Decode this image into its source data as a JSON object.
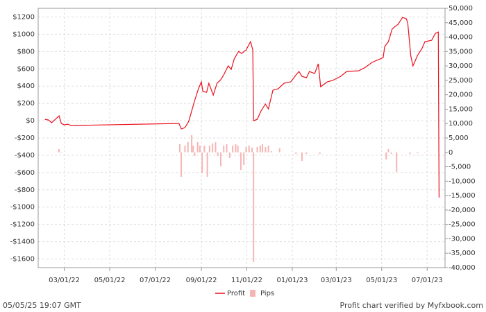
{
  "chart_data": {
    "type": "line_bar",
    "footer_left": "05/05/25 19:07 GMT",
    "footer_right": "Profit chart verified by Myfxbook.com",
    "xlim": [
      "01/25/22",
      "07/25/23"
    ],
    "xticks": [
      "03/01/22",
      "05/01/22",
      "07/01/22",
      "09/01/22",
      "11/01/22",
      "01/01/23",
      "03/01/23",
      "05/01/23",
      "07/01/23"
    ],
    "ylim": [
      -1700,
      1300
    ],
    "yticks": [
      {
        "value": 1200,
        "label": "$1200"
      },
      {
        "value": 1000,
        "label": "$1000"
      },
      {
        "value": 800,
        "label": "$800"
      },
      {
        "value": 600,
        "label": "$600"
      },
      {
        "value": 400,
        "label": "$400"
      },
      {
        "value": 200,
        "label": "$200"
      },
      {
        "value": 0,
        "label": "$0"
      },
      {
        "value": -200,
        "label": "-$200"
      },
      {
        "value": -400,
        "label": "-$400"
      },
      {
        "value": -600,
        "label": "-$600"
      },
      {
        "value": -800,
        "label": "-$800"
      },
      {
        "value": -1000,
        "label": "-$1000"
      },
      {
        "value": -1200,
        "label": "-$1200"
      },
      {
        "value": -1400,
        "label": "-$1400"
      },
      {
        "value": -1600,
        "label": "-$1600"
      }
    ],
    "y2lim": [
      -40000,
      50000
    ],
    "y2ticks": [
      {
        "value": 50000,
        "label": "50,000"
      },
      {
        "value": 45000,
        "label": "45,000"
      },
      {
        "value": 40000,
        "label": "40,000"
      },
      {
        "value": 35000,
        "label": "35,000"
      },
      {
        "value": 30000,
        "label": "30,000"
      },
      {
        "value": 25000,
        "label": "25,000"
      },
      {
        "value": 20000,
        "label": "20,000"
      },
      {
        "value": 15000,
        "label": "15,000"
      },
      {
        "value": 10000,
        "label": "10,000"
      },
      {
        "value": 5000,
        "label": "5,000"
      },
      0,
      {
        "value": -5000,
        "label": "-5,000"
      },
      {
        "value": -10000,
        "label": "-10,000"
      },
      {
        "value": -15000,
        "label": "-15,000"
      },
      {
        "value": -20000,
        "label": "-20,000"
      },
      {
        "value": -25000,
        "label": "-25,000"
      },
      {
        "value": -30000,
        "label": "-30,000"
      },
      {
        "value": -35000,
        "label": "-35,000"
      },
      {
        "value": -40000,
        "label": "-40,000"
      }
    ],
    "grid": true,
    "series": [
      {
        "name": "Profit",
        "type": "line",
        "color": "#e8101c",
        "x": [
          "02/03/22",
          "02/08/22",
          "02/12/22",
          "02/17/22",
          "02/22/22",
          "02/25/22",
          "03/01/22",
          "03/06/22",
          "03/10/22",
          "08/02/22",
          "08/05/22",
          "08/10/22",
          "08/15/22",
          "08/19/22",
          "08/23/22",
          "08/28/22",
          "09/01/22",
          "09/03/22",
          "09/08/22",
          "09/11/22",
          "09/17/22",
          "09/22/22",
          "09/27/22",
          "10/01/22",
          "10/07/22",
          "10/11/22",
          "10/15/22",
          "10/21/22",
          "10/25/22",
          "10/31/22",
          "11/06/22",
          "11/09/22",
          "11/10/22",
          "11/15/22",
          "11/20/22",
          "11/26/22",
          "11/30/22",
          "12/06/22",
          "12/13/22",
          "12/21/22",
          "12/30/22",
          "01/06/23",
          "01/10/23",
          "01/14/23",
          "01/20/23",
          "01/24/23",
          "01/31/23",
          "02/05/23",
          "02/08/23",
          "02/17/23",
          "02/24/23",
          "03/07/23",
          "03/15/23",
          "03/31/23",
          "04/09/23",
          "04/18/23",
          "05/03/23",
          "05/05/23",
          "05/10/23",
          "05/15/23",
          "05/19/23",
          "05/23/23",
          "05/29/23",
          "06/03/23",
          "06/05/23",
          "06/09/23",
          "06/12/23",
          "06/18/23",
          "06/24/23",
          "06/28/23",
          "07/07/23",
          "07/12/23",
          "07/16/23",
          "07/17/23"
        ],
        "values": [
          16,
          8,
          -24,
          16,
          56,
          -32,
          -48,
          -40,
          -56,
          -32,
          -96,
          -80,
          -8,
          112,
          233,
          369,
          449,
          337,
          329,
          433,
          297,
          433,
          473,
          529,
          634,
          593,
          714,
          802,
          778,
          818,
          914,
          818,
          0,
          16,
          112,
          192,
          136,
          353,
          369,
          433,
          449,
          529,
          569,
          513,
          497,
          569,
          545,
          658,
          393,
          449,
          465,
          513,
          569,
          577,
          617,
          674,
          730,
          858,
          914,
          1059,
          1091,
          1115,
          1195,
          1179,
          1131,
          754,
          634,
          754,
          834,
          914,
          930,
          1010,
          1026,
          -890
        ]
      },
      {
        "name": "Pips",
        "type": "bar",
        "axis": "y2",
        "color": "#f5b5b5",
        "x": [
          "02/22/22",
          "02/25/22",
          "08/03/22",
          "08/05/22",
          "08/10/22",
          "08/14/22",
          "08/19/22",
          "08/21/22",
          "08/23/22",
          "08/27/22",
          "08/30/22",
          "09/02/22",
          "09/05/22",
          "09/09/22",
          "09/12/22",
          "09/16/22",
          "09/20/22",
          "09/23/22",
          "09/27/22",
          "10/01/22",
          "10/05/22",
          "10/09/22",
          "10/13/22",
          "10/17/22",
          "10/20/22",
          "10/24/22",
          "10/28/22",
          "10/31/22",
          "11/04/22",
          "11/08/22",
          "11/10/22",
          "11/15/22",
          "11/19/22",
          "11/22/22",
          "11/26/22",
          "11/30/22",
          "12/04/22",
          "12/15/22",
          "01/06/23",
          "01/14/23",
          "01/20/23",
          "02/07/23",
          "05/07/23",
          "05/10/23",
          "05/14/23",
          "05/21/23",
          "06/08/23",
          "06/18/23",
          "06/28/23"
        ],
        "values": [
          1150,
          -100,
          2840,
          -8470,
          2360,
          3560,
          5970,
          2360,
          -1250,
          3560,
          2360,
          -7270,
          2360,
          -8470,
          2360,
          3080,
          3560,
          -1250,
          -4840,
          2360,
          2840,
          -1970,
          2360,
          2840,
          2360,
          -6060,
          -4380,
          1880,
          2360,
          1640,
          -38060,
          1880,
          2360,
          2840,
          1880,
          2360,
          430,
          1400,
          -530,
          -2940,
          -530,
          -530,
          -2450,
          1150,
          -530,
          -6780,
          -530,
          -290,
          -50
        ]
      }
    ]
  }
}
